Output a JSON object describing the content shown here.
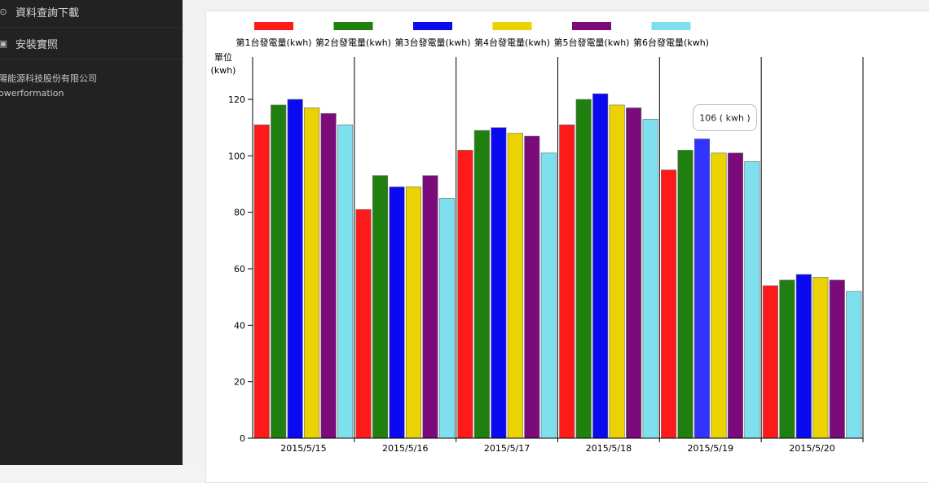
{
  "sidebar": {
    "items": [
      {
        "label": "資料查詢下載",
        "icon": "download-icon"
      },
      {
        "label": "安裝實照",
        "icon": "image-icon"
      }
    ],
    "company_line1": "陽能源科技股份有限公司",
    "company_line2": "owerformation"
  },
  "tooltip": {
    "text": "106 ( kwh )",
    "series_index": 2,
    "category_index": 4
  },
  "chart_data": {
    "type": "bar",
    "ylabel_line1": "單位",
    "ylabel_line2": "(kwh)",
    "ylim": [
      0,
      135
    ],
    "yticks": [
      0,
      20,
      40,
      60,
      80,
      100,
      120
    ],
    "categories": [
      "2015/5/15",
      "2015/5/16",
      "2015/5/17",
      "2015/5/18",
      "2015/5/19",
      "2015/5/20"
    ],
    "series": [
      {
        "name": "第1台發電量(kwh)",
        "color": "#ff1a1a",
        "values": [
          111,
          81,
          102,
          111,
          95,
          54
        ]
      },
      {
        "name": "第2台發電量(kwh)",
        "color": "#1f7f0f",
        "values": [
          118,
          93,
          109,
          120,
          102,
          56
        ]
      },
      {
        "name": "第3台發電量(kwh)",
        "color": "#0a0af0",
        "values": [
          120,
          89,
          110,
          122,
          106,
          58
        ]
      },
      {
        "name": "第4台發電量(kwh)",
        "color": "#ebd203",
        "values": [
          117,
          89,
          108,
          118,
          101,
          57
        ]
      },
      {
        "name": "第5台發電量(kwh)",
        "color": "#7b0b7b",
        "values": [
          115,
          93,
          107,
          117,
          101,
          56
        ]
      },
      {
        "name": "第6台發電量(kwh)",
        "color": "#7ee0ee",
        "values": [
          111,
          85,
          101,
          113,
          98,
          52
        ]
      }
    ],
    "highlight_color": "#3333ff",
    "legend_position": "top",
    "grid": false
  }
}
